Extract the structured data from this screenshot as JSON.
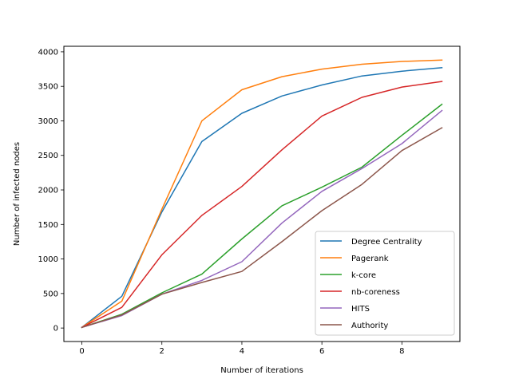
{
  "chart_data": {
    "type": "line",
    "title": "",
    "xlabel": "Number of iterations",
    "ylabel": "Number of infected nodes",
    "xlim": [
      -0.45,
      9.45
    ],
    "ylim": [
      -195,
      4080
    ],
    "xticks": [
      0,
      2,
      4,
      6,
      8
    ],
    "yticks": [
      0,
      500,
      1000,
      1500,
      2000,
      2500,
      3000,
      3500,
      4000
    ],
    "grid": false,
    "legend_position": "lower-right",
    "x": [
      0,
      1,
      2,
      3,
      4,
      5,
      6,
      7,
      8,
      9
    ],
    "series": [
      {
        "name": "Degree Centrality",
        "color": "#1f77b4",
        "values": [
          10,
          460,
          1680,
          2700,
          3110,
          3360,
          3520,
          3650,
          3720,
          3770
        ]
      },
      {
        "name": "Pagerank",
        "color": "#ff7f0e",
        "values": [
          10,
          390,
          1720,
          3000,
          3450,
          3640,
          3750,
          3820,
          3860,
          3880
        ]
      },
      {
        "name": "k-core",
        "color": "#2ca02c",
        "values": [
          10,
          200,
          510,
          780,
          1290,
          1770,
          2040,
          2330,
          2790,
          3240
        ]
      },
      {
        "name": "nb-coreness",
        "color": "#d62728",
        "values": [
          10,
          300,
          1060,
          1630,
          2050,
          2580,
          3070,
          3340,
          3490,
          3570
        ]
      },
      {
        "name": "HITS",
        "color": "#9467bd",
        "values": [
          10,
          180,
          490,
          690,
          960,
          1520,
          1980,
          2310,
          2670,
          3150
        ]
      },
      {
        "name": "Authority",
        "color": "#8c564b",
        "values": [
          10,
          190,
          490,
          660,
          820,
          1250,
          1700,
          2080,
          2570,
          2900
        ]
      }
    ]
  }
}
